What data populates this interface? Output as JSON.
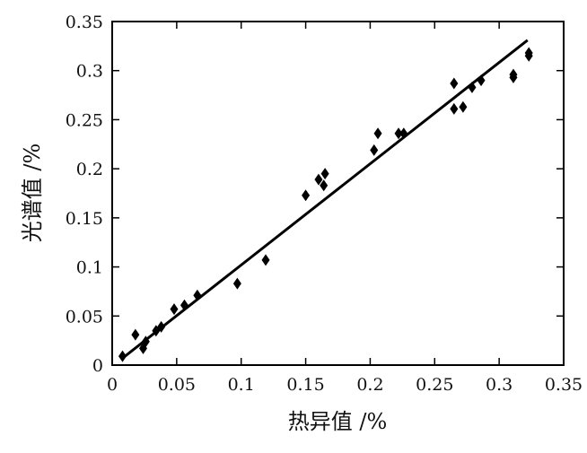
{
  "chart_data": {
    "type": "scatter",
    "title": "",
    "xlabel": "热异值 /%",
    "ylabel": "光谱值 /%",
    "xlim": [
      0,
      0.35
    ],
    "ylim": [
      0,
      0.35
    ],
    "xticks": [
      "0",
      "0.05",
      "0.1",
      "0.15",
      "0.2",
      "0.25",
      "0.3",
      "0.35"
    ],
    "yticks": [
      "0",
      "0.05",
      "0.1",
      "0.15",
      "0.2",
      "0.25",
      "0.3",
      "0.35"
    ],
    "grid": false,
    "legend": "none",
    "marker": "diamond",
    "color": "#000000",
    "points": [
      {
        "x": 0.008,
        "y": 0.009
      },
      {
        "x": 0.018,
        "y": 0.031
      },
      {
        "x": 0.024,
        "y": 0.017
      },
      {
        "x": 0.026,
        "y": 0.024
      },
      {
        "x": 0.034,
        "y": 0.035
      },
      {
        "x": 0.038,
        "y": 0.039
      },
      {
        "x": 0.048,
        "y": 0.057
      },
      {
        "x": 0.056,
        "y": 0.061
      },
      {
        "x": 0.066,
        "y": 0.071
      },
      {
        "x": 0.097,
        "y": 0.083
      },
      {
        "x": 0.119,
        "y": 0.107
      },
      {
        "x": 0.15,
        "y": 0.173
      },
      {
        "x": 0.16,
        "y": 0.189
      },
      {
        "x": 0.164,
        "y": 0.183
      },
      {
        "x": 0.165,
        "y": 0.195
      },
      {
        "x": 0.203,
        "y": 0.219
      },
      {
        "x": 0.206,
        "y": 0.236
      },
      {
        "x": 0.222,
        "y": 0.236
      },
      {
        "x": 0.226,
        "y": 0.236
      },
      {
        "x": 0.265,
        "y": 0.287
      },
      {
        "x": 0.265,
        "y": 0.261
      },
      {
        "x": 0.272,
        "y": 0.263
      },
      {
        "x": 0.279,
        "y": 0.283
      },
      {
        "x": 0.286,
        "y": 0.29
      },
      {
        "x": 0.311,
        "y": 0.296
      },
      {
        "x": 0.311,
        "y": 0.293
      },
      {
        "x": 0.323,
        "y": 0.318
      },
      {
        "x": 0.323,
        "y": 0.315
      }
    ],
    "fit_line": {
      "x": [
        0.007,
        0.322
      ],
      "y": [
        0.006,
        0.331
      ]
    }
  }
}
